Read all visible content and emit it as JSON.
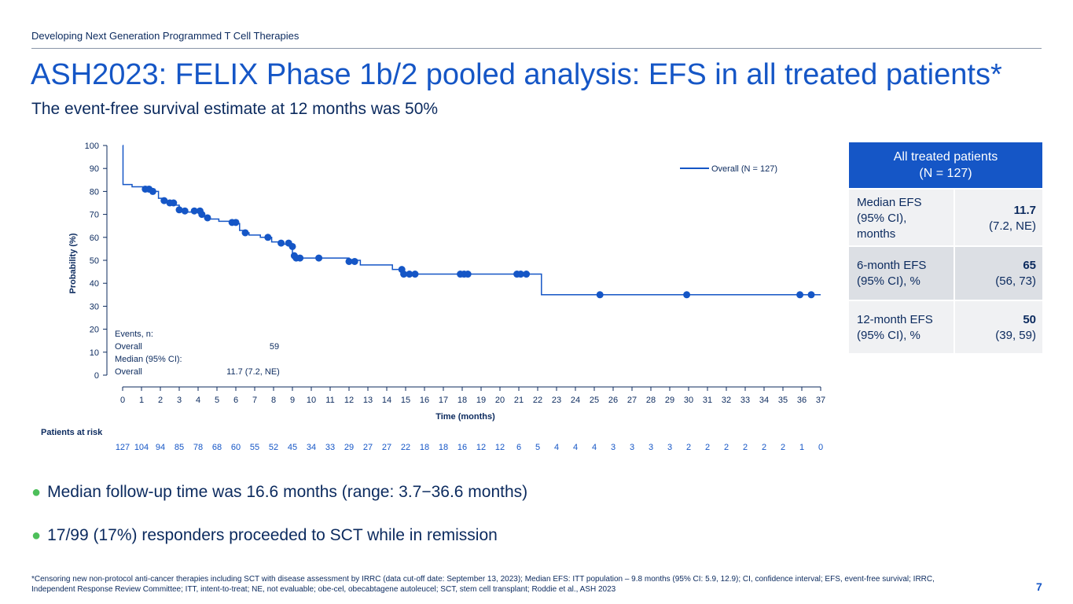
{
  "header": {
    "label": "Developing Next Generation Programmed T Cell Therapies",
    "title": "ASH2023: FELIX Phase 1b/2 pooled analysis: EFS in all treated patients*",
    "subtitle": "The event-free survival estimate at 12 months was 50%"
  },
  "chart_data": {
    "type": "line",
    "title": "",
    "xlabel": "Time (months)",
    "ylabel": "Probability (%)",
    "xlim": [
      0,
      37
    ],
    "ylim": [
      0,
      100
    ],
    "x_ticks": [
      0,
      1,
      2,
      3,
      4,
      5,
      6,
      7,
      8,
      9,
      10,
      11,
      12,
      13,
      14,
      15,
      16,
      17,
      18,
      19,
      20,
      21,
      22,
      23,
      24,
      25,
      26,
      27,
      28,
      29,
      30,
      31,
      32,
      33,
      34,
      35,
      36,
      37
    ],
    "y_ticks": [
      0,
      10,
      20,
      30,
      40,
      50,
      60,
      70,
      80,
      90,
      100
    ],
    "legend": {
      "position": "top-right",
      "entries": [
        "Overall (N = 127)"
      ]
    },
    "series": [
      {
        "name": "Overall (N = 127)",
        "color": "#1556c6",
        "steps": [
          [
            0,
            100
          ],
          [
            0.02,
            83
          ],
          [
            0.5,
            82
          ],
          [
            1.4,
            81
          ],
          [
            1.7,
            80
          ],
          [
            1.9,
            77
          ],
          [
            2.1,
            76
          ],
          [
            2.5,
            74
          ],
          [
            3,
            72
          ],
          [
            3.3,
            71
          ],
          [
            4.2,
            69
          ],
          [
            4.5,
            68
          ],
          [
            5.1,
            67
          ],
          [
            6,
            66
          ],
          [
            6.2,
            63
          ],
          [
            6.4,
            62
          ],
          [
            6.7,
            61
          ],
          [
            7.3,
            60
          ],
          [
            7.9,
            58
          ],
          [
            8.5,
            57
          ],
          [
            8.9,
            56
          ],
          [
            9.0,
            53
          ],
          [
            9.1,
            51
          ],
          [
            12.0,
            50
          ],
          [
            12.6,
            48
          ],
          [
            14.3,
            46
          ],
          [
            14.9,
            44
          ],
          [
            22.2,
            35
          ],
          [
            37,
            35
          ]
        ],
        "censors": [
          [
            1.2,
            81
          ],
          [
            1.4,
            81
          ],
          [
            1.6,
            80
          ],
          [
            2.2,
            76
          ],
          [
            2.5,
            75
          ],
          [
            2.7,
            75
          ],
          [
            3.0,
            72
          ],
          [
            3.3,
            71.5
          ],
          [
            3.8,
            71.5
          ],
          [
            4.1,
            71.5
          ],
          [
            4.2,
            70
          ],
          [
            4.5,
            68.5
          ],
          [
            5.8,
            66.5
          ],
          [
            6.0,
            66.5
          ],
          [
            6.5,
            62
          ],
          [
            7.7,
            60
          ],
          [
            8.4,
            57.5
          ],
          [
            8.8,
            57.5
          ],
          [
            9.0,
            56
          ],
          [
            9.1,
            52
          ],
          [
            9.2,
            51
          ],
          [
            9.4,
            51
          ],
          [
            10.4,
            51
          ],
          [
            12.0,
            49.5
          ],
          [
            12.3,
            49.5
          ],
          [
            14.8,
            46
          ],
          [
            14.9,
            44
          ],
          [
            15.2,
            44
          ],
          [
            15.5,
            44
          ],
          [
            17.9,
            44
          ],
          [
            18.1,
            44
          ],
          [
            18.3,
            44
          ],
          [
            20.9,
            44
          ],
          [
            21.1,
            44
          ],
          [
            21.4,
            44
          ],
          [
            25.3,
            35
          ],
          [
            29.9,
            35
          ],
          [
            35.9,
            35
          ],
          [
            36.5,
            35
          ]
        ]
      }
    ],
    "annotations": {
      "events_label": "Events, n:",
      "events_group": "Overall",
      "events_value": "59",
      "median_label": "Median (95% CI):",
      "median_group": "Overall",
      "median_value": "11.7 (7.2, NE)"
    },
    "risk_table": {
      "label": "Patients at risk",
      "values": [
        "127",
        "104",
        "94",
        "85",
        "78",
        "68",
        "60",
        "55",
        "52",
        "45",
        "34",
        "33",
        "29",
        "27",
        "27",
        "22",
        "18",
        "18",
        "16",
        "12",
        "12",
        "6",
        "5",
        "4",
        "4",
        "4",
        "3",
        "3",
        "3",
        "3",
        "2",
        "2",
        "2",
        "2",
        "2",
        "2",
        "1",
        "0"
      ]
    }
  },
  "efs_table": {
    "header_line1": "All treated patients",
    "header_line2": "(N = 127)",
    "rows": [
      {
        "label": "Median EFS (95% CI), months",
        "value": "11.7",
        "ci": "(7.2, NE)"
      },
      {
        "label": "6-month EFS (95% CI), %",
        "value": "65",
        "ci": "(56, 73)"
      },
      {
        "label": "12-month EFS (95% CI), %",
        "value": "50",
        "ci": "(39, 59)"
      }
    ]
  },
  "bullets": [
    "Median follow-up time was 16.6 months (range: 3.7−36.6 months)",
    "17/99 (17%) responders proceeded to SCT while in remission"
  ],
  "footnote": "*Censoring new non-protocol anti-cancer therapies including SCT with disease assessment by IRRC (data cut-off date: September 13, 2023); Median EFS: ITT population – 9.8 months (95% CI: 5.9, 12.9); CI, confidence interval; EFS, event-free survival; IRRC, Independent Response Review Committee; ITT, intent-to-treat; NE, not evaluable; obe-cel, obecabtagene autoleucel; SCT, stem cell transplant; Roddie et al., ASH 2023",
  "page_number": "7",
  "colors": {
    "accent": "#1556c6",
    "navy": "#0b2a5e",
    "bullet": "#4dbf5a"
  }
}
